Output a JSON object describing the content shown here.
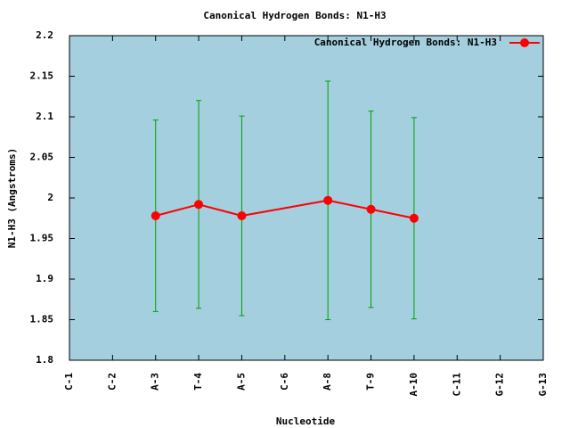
{
  "chart_data": {
    "type": "line",
    "title": "Canonical Hydrogen Bonds: N1-H3",
    "x_label": "Nucleotide",
    "y_label": "N1-H3 (Angstroms)",
    "categories": [
      "C-1",
      "C-2",
      "A-3",
      "T-4",
      "A-5",
      "C-6",
      "A-8",
      "T-9",
      "A-10",
      "C-11",
      "G-12",
      "G-13"
    ],
    "series": [
      {
        "name": "Canonical Hydrogen Bonds: N1-H3",
        "color": "#ff0000",
        "error_color": "#00a000",
        "values": [
          null,
          null,
          1.978,
          1.992,
          1.978,
          null,
          1.997,
          1.986,
          1.975,
          null,
          null,
          null
        ],
        "errors": [
          null,
          null,
          0.118,
          0.128,
          0.123,
          null,
          0.147,
          0.121,
          0.124,
          null,
          null,
          null
        ]
      }
    ],
    "ylim": [
      1.8,
      2.2
    ],
    "yticks": [
      1.8,
      1.85,
      1.9,
      1.95,
      2,
      2.05,
      2.1,
      2.15,
      2.2
    ],
    "background": "#a3cfdf",
    "legend": "top-right",
    "grid": false
  }
}
